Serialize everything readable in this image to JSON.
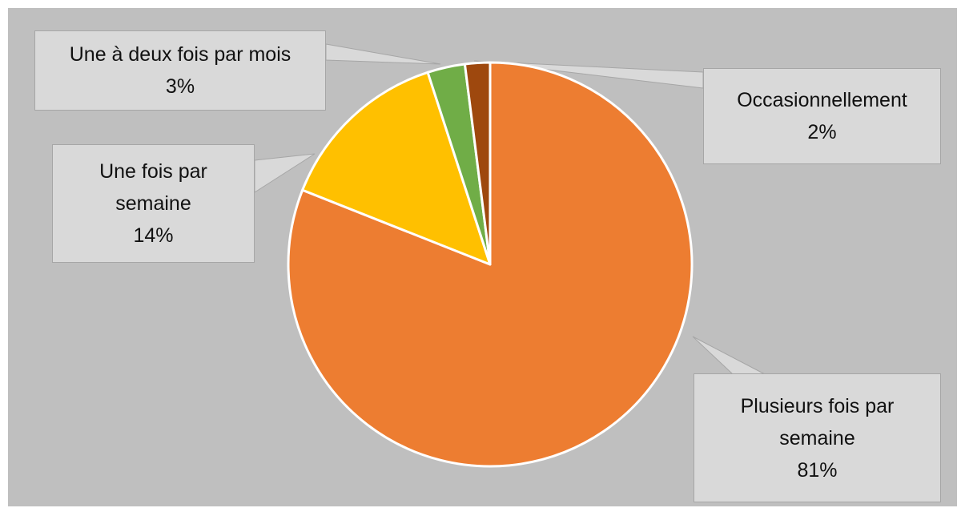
{
  "chart_data": {
    "type": "pie",
    "categories": [
      "Plusieurs fois par semaine",
      "Une fois par semaine",
      "Une à deux fois par mois",
      "Occasionnellement"
    ],
    "values": [
      81,
      14,
      3,
      2
    ],
    "value_labels": [
      "81%",
      "14%",
      "3%",
      "2%"
    ],
    "colors": [
      "#ed7d31",
      "#ffc000",
      "#70ad47",
      "#9e480e"
    ]
  }
}
